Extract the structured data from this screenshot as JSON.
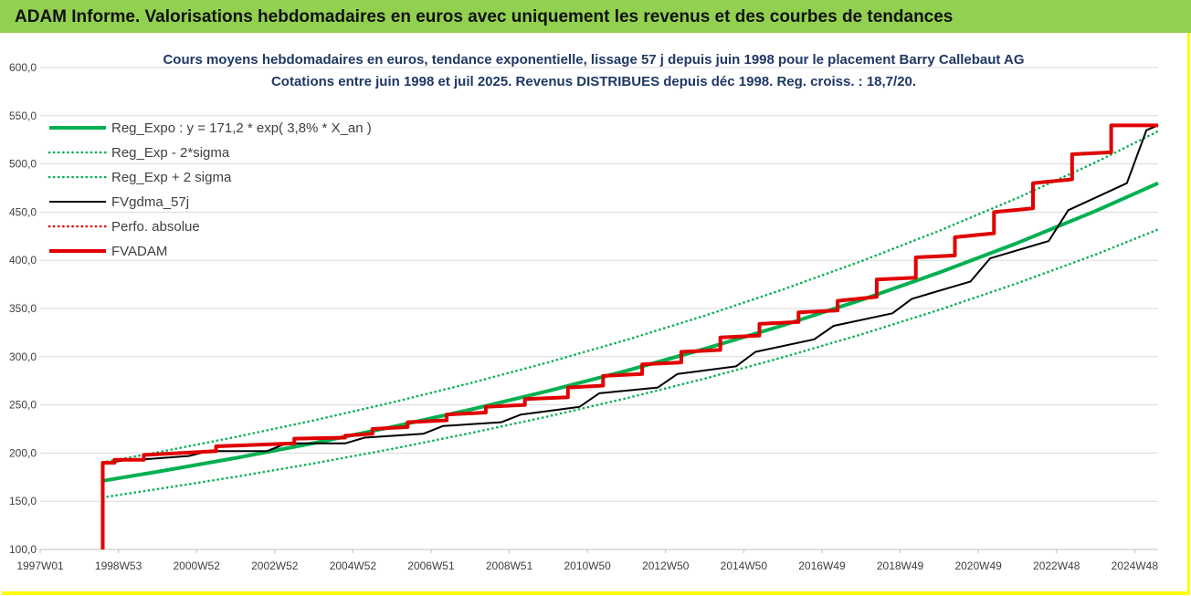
{
  "header": {
    "title": "ADAM Informe. Valorisations hebdomadaires en euros avec uniquement les revenus et des courbes de tendances"
  },
  "chart_data": {
    "type": "line",
    "title": "Cours moyens hebdomadaires en euros, tendance exponentielle, lissage 57 j depuis juin 1998 pour le placement Barry Callebaut AG",
    "subtitle": "Cotations entre juin 1998 et juil 2025. Revenus DISTRIBUES depuis déc 1998. Reg. croiss. : 18,7/20.",
    "xlabel": "",
    "ylabel": "",
    "ylim": [
      100,
      600
    ],
    "yticks": [
      "100,0",
      "150,0",
      "200,0",
      "250,0",
      "300,0",
      "350,0",
      "400,0",
      "450,0",
      "500,0",
      "550,0",
      "600,0"
    ],
    "xlim": [
      1997.0,
      2025.6
    ],
    "xticks": [
      {
        "label": "1997W01",
        "x": 1997.0
      },
      {
        "label": "1998W53",
        "x": 1999.0
      },
      {
        "label": "2000W52",
        "x": 2001.0
      },
      {
        "label": "2002W52",
        "x": 2003.0
      },
      {
        "label": "2004W52",
        "x": 2005.0
      },
      {
        "label": "2006W51",
        "x": 2007.0
      },
      {
        "label": "2008W51",
        "x": 2009.0
      },
      {
        "label": "2010W50",
        "x": 2011.0
      },
      {
        "label": "2012W50",
        "x": 2013.0
      },
      {
        "label": "2014W50",
        "x": 2015.0
      },
      {
        "label": "2016W49",
        "x": 2017.0
      },
      {
        "label": "2018W49",
        "x": 2019.0
      },
      {
        "label": "2020W49",
        "x": 2021.0
      },
      {
        "label": "2022W48",
        "x": 2023.0
      },
      {
        "label": "2024W48",
        "x": 2025.0
      }
    ],
    "grid": true,
    "legend": "top-left",
    "colors": {
      "trend": "#00b050",
      "fv": "#e00000",
      "smooth": "#000000",
      "border": "#ffff00",
      "header": "#92d050"
    },
    "series": [
      {
        "name": "Reg_Expo : y = 171,2 * exp( 3,8% *  X_an )",
        "style": "solid",
        "color": "#00b050",
        "x": [
          1998.6,
          2000,
          2002,
          2004,
          2006,
          2008,
          2010,
          2012,
          2014,
          2016,
          2018,
          2020,
          2022,
          2024,
          2025.6
        ],
        "values": [
          171.2,
          180.6,
          194.9,
          210.3,
          227.1,
          245.1,
          264.5,
          285.4,
          308.1,
          332.5,
          358.8,
          387.3,
          418.0,
          451.1,
          480.0
        ]
      },
      {
        "name": "Reg_Exp - 2*sigma",
        "style": "dotted",
        "color": "#00b050",
        "x": [
          1998.6,
          2000,
          2002,
          2004,
          2006,
          2008,
          2010,
          2012,
          2014,
          2016,
          2018,
          2020,
          2022,
          2024,
          2025.6
        ],
        "values": [
          154.0,
          162.6,
          175.4,
          189.3,
          204.3,
          220.6,
          238.1,
          256.9,
          277.3,
          299.3,
          323.0,
          348.6,
          376.2,
          406.0,
          432.0
        ]
      },
      {
        "name": "Reg_Exp + 2 sigma",
        "style": "dotted",
        "color": "#00b050",
        "x": [
          1998.6,
          2000,
          2002,
          2004,
          2006,
          2008,
          2010,
          2012,
          2014,
          2016,
          2018,
          2020,
          2022,
          2024,
          2025.6
        ],
        "values": [
          190.4,
          200.8,
          216.7,
          233.9,
          252.5,
          272.5,
          294.1,
          317.4,
          342.5,
          369.7,
          399.0,
          430.6,
          464.7,
          501.6,
          534.0
        ]
      },
      {
        "name": "FVgdma_57j",
        "style": "solid",
        "color": "#000000",
        "x": [
          1998.6,
          1998.75,
          1999.25,
          1999.5,
          2000.8,
          2001.3,
          2002.8,
          2003.3,
          2004.8,
          2005.3,
          2006.8,
          2007.3,
          2008.8,
          2009.3,
          2010.8,
          2011.3,
          2012.8,
          2013.3,
          2014.8,
          2015.3,
          2016.8,
          2017.3,
          2018.8,
          2019.3,
          2020.8,
          2021.3,
          2022.8,
          2023.3,
          2024.8,
          2025.3,
          2025.6
        ],
        "values": [
          190,
          190,
          193,
          193,
          197,
          202,
          202,
          210,
          210,
          216,
          220,
          228,
          232,
          240,
          248,
          262,
          268,
          282,
          290,
          305,
          318,
          332,
          345,
          360,
          378,
          402,
          420,
          452,
          480,
          535,
          540
        ]
      },
      {
        "name": "Perfo. absolue",
        "style": "dotted",
        "color": "#e00000",
        "x": [],
        "values": []
      },
      {
        "name": "FVADAM",
        "style": "solid",
        "color": "#e00000",
        "x": [
          1998.6,
          1998.6,
          1998.9,
          1998.9,
          1999.65,
          1999.65,
          2001.5,
          2001.5,
          2003.5,
          2003.5,
          2004.8,
          2004.8,
          2005.5,
          2005.5,
          2006.4,
          2006.4,
          2007.4,
          2007.4,
          2008.4,
          2008.4,
          2009.4,
          2009.4,
          2010.5,
          2010.5,
          2011.4,
          2011.4,
          2012.4,
          2012.4,
          2013.4,
          2013.4,
          2014.4,
          2014.4,
          2015.4,
          2015.4,
          2016.4,
          2016.4,
          2017.4,
          2017.4,
          2018.4,
          2018.4,
          2019.4,
          2019.4,
          2020.4,
          2020.4,
          2021.4,
          2021.4,
          2022.4,
          2022.4,
          2023.4,
          2023.4,
          2024.4,
          2024.4,
          2025.6
        ],
        "values": [
          100,
          190,
          190,
          193,
          193,
          198,
          202,
          207,
          210,
          215,
          216,
          218,
          220,
          225,
          227,
          232,
          234,
          240,
          242,
          248,
          250,
          256,
          258,
          268,
          270,
          280,
          282,
          292,
          294,
          305,
          307,
          320,
          322,
          334,
          336,
          346,
          348,
          358,
          362,
          380,
          382,
          403,
          405,
          424,
          428,
          450,
          454,
          480,
          484,
          510,
          512,
          540,
          540
        ]
      }
    ]
  }
}
